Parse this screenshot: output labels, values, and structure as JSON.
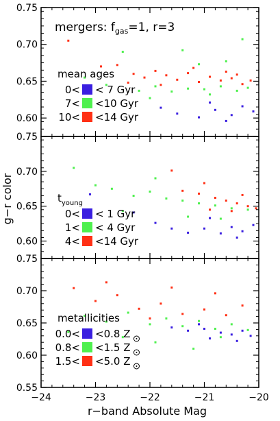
{
  "figure": {
    "ylabel": "g−r color",
    "xlabel": "r−band Absolute Mag",
    "xlim": [
      -24,
      -20
    ],
    "x_tick_values": [
      -24,
      -23,
      -22,
      -21,
      -20
    ],
    "x_tick_labels": [
      "−24",
      "−23",
      "−22",
      "−21",
      "−20"
    ]
  },
  "colors": {
    "blue": "#3a1fe0",
    "green": "#4ef04e",
    "red": "#ff3015"
  },
  "chart_data": [
    {
      "type": "scatter",
      "title": "mergers: f_gas=1, r=3",
      "title_parts": {
        "prefix": "mergers: f",
        "sub": "gas",
        "suffix": "=1, r=3"
      },
      "legend_title": "mean ages",
      "legend_title_sub": "",
      "legend": [
        {
          "lo": "0<",
          "hi": "< 7 Gyr",
          "color": "#3a1fe0"
        },
        {
          "lo": "7<",
          "hi": "<10 Gyr",
          "color": "#4ef04e"
        },
        {
          "lo": "10<",
          "hi": "<14 Gyr",
          "color": "#ff3015"
        }
      ],
      "xlim": [
        -24,
        -20
      ],
      "ylim": [
        0.575,
        0.75
      ],
      "y_ticks": [
        0.6,
        0.65,
        0.7,
        0.75
      ],
      "y_tick_labels": [
        "0.60",
        "0.65",
        "0.70",
        "0.75"
      ],
      "series": [
        {
          "color": "#ff3015",
          "points": [
            [
              -23.5,
              0.705
            ],
            [
              -22.9,
              0.67
            ],
            [
              -22.6,
              0.672
            ],
            [
              -22.3,
              0.66
            ],
            [
              -22.1,
              0.655
            ],
            [
              -21.9,
              0.664
            ],
            [
              -21.7,
              0.658
            ],
            [
              -21.5,
              0.652
            ],
            [
              -21.3,
              0.661
            ],
            [
              -21.1,
              0.649
            ],
            [
              -20.9,
              0.656
            ],
            [
              -20.7,
              0.651
            ],
            [
              -20.5,
              0.654
            ],
            [
              -20.3,
              0.646
            ],
            [
              -20.15,
              0.651
            ],
            [
              -21.8,
              0.645
            ],
            [
              -21.2,
              0.668
            ],
            [
              -20.6,
              0.663
            ],
            [
              -22.4,
              0.648
            ],
            [
              -20.4,
              0.659
            ]
          ]
        },
        {
          "color": "#4ef04e",
          "points": [
            [
              -23.2,
              0.655
            ],
            [
              -22.8,
              0.645
            ],
            [
              -22.5,
              0.69
            ],
            [
              -22.2,
              0.637
            ],
            [
              -21.9,
              0.643
            ],
            [
              -21.6,
              0.636
            ],
            [
              -21.3,
              0.64
            ],
            [
              -21.0,
              0.639
            ],
            [
              -20.7,
              0.643
            ],
            [
              -20.4,
              0.637
            ],
            [
              -20.2,
              0.641
            ],
            [
              -21.1,
              0.673
            ],
            [
              -20.6,
              0.677
            ],
            [
              -21.4,
              0.692
            ],
            [
              -20.3,
              0.707
            ],
            [
              -22.0,
              0.627
            ],
            [
              -20.9,
              0.632
            ]
          ]
        },
        {
          "color": "#3a1fe0",
          "points": [
            [
              -21.5,
              0.606
            ],
            [
              -21.1,
              0.601
            ],
            [
              -20.8,
              0.611
            ],
            [
              -20.5,
              0.604
            ],
            [
              -20.3,
              0.616
            ],
            [
              -20.1,
              0.609
            ],
            [
              -21.8,
              0.614
            ],
            [
              -20.6,
              0.596
            ],
            [
              -20.9,
              0.621
            ]
          ]
        }
      ]
    },
    {
      "type": "scatter",
      "title": "",
      "legend_title": "t",
      "legend_title_sub": "young",
      "legend": [
        {
          "lo": "0<",
          "hi": "< 1 Gyr",
          "color": "#3a1fe0"
        },
        {
          "lo": "1<",
          "hi": "< 4 Gyr",
          "color": "#4ef04e"
        },
        {
          "lo": "4<",
          "hi": "<14 Gyr",
          "color": "#ff3015"
        }
      ],
      "xlim": [
        -24,
        -20
      ],
      "ylim": [
        0.575,
        0.75
      ],
      "y_ticks": [
        0.6,
        0.65,
        0.7,
        0.75
      ],
      "y_tick_labels": [
        "0.60",
        "0.65",
        "0.70",
        "0.75"
      ],
      "series": [
        {
          "color": "#4ef04e",
          "points": [
            [
              -23.4,
              0.705
            ],
            [
              -23.0,
              0.68
            ],
            [
              -22.7,
              0.675
            ],
            [
              -22.3,
              0.665
            ],
            [
              -22.0,
              0.671
            ],
            [
              -21.7,
              0.661
            ],
            [
              -21.4,
              0.658
            ],
            [
              -21.1,
              0.654
            ],
            [
              -20.8,
              0.651
            ],
            [
              -20.5,
              0.647
            ],
            [
              -20.2,
              0.645
            ],
            [
              -22.5,
              0.643
            ],
            [
              -21.9,
              0.69
            ],
            [
              -21.3,
              0.635
            ],
            [
              -20.7,
              0.632
            ]
          ]
        },
        {
          "color": "#ff3015",
          "points": [
            [
              -21.4,
              0.672
            ],
            [
              -21.1,
              0.668
            ],
            [
              -20.8,
              0.662
            ],
            [
              -20.6,
              0.658
            ],
            [
              -20.4,
              0.654
            ],
            [
              -20.2,
              0.65
            ],
            [
              -20.05,
              0.647
            ],
            [
              -21.0,
              0.683
            ],
            [
              -20.5,
              0.643
            ],
            [
              -20.3,
              0.666
            ],
            [
              -21.6,
              0.701
            ],
            [
              -20.9,
              0.645
            ]
          ]
        },
        {
          "color": "#3a1fe0",
          "points": [
            [
              -23.1,
              0.667
            ],
            [
              -22.3,
              0.641
            ],
            [
              -21.9,
              0.626
            ],
            [
              -21.6,
              0.618
            ],
            [
              -21.3,
              0.612
            ],
            [
              -21.0,
              0.618
            ],
            [
              -20.7,
              0.611
            ],
            [
              -20.5,
              0.62
            ],
            [
              -20.3,
              0.614
            ],
            [
              -20.1,
              0.623
            ],
            [
              -20.9,
              0.633
            ],
            [
              -20.4,
              0.605
            ]
          ]
        }
      ]
    },
    {
      "type": "scatter",
      "title": "",
      "legend_title": "metallicities",
      "legend_title_sub": "",
      "legend": [
        {
          "lo": "0.0<",
          "hi": "<0.8 Z",
          "sun": true,
          "color": "#3a1fe0"
        },
        {
          "lo": "0.8<",
          "hi": "<1.5 Z",
          "sun": true,
          "color": "#4ef04e"
        },
        {
          "lo": "1.5<",
          "hi": "<5.0 Z",
          "sun": true,
          "color": "#ff3015"
        }
      ],
      "xlim": [
        -24,
        -20
      ],
      "ylim": [
        0.55,
        0.75
      ],
      "y_ticks": [
        0.55,
        0.6,
        0.65,
        0.7,
        0.75
      ],
      "y_tick_labels": [
        "0.55",
        "0.60",
        "0.65",
        "0.70",
        "0.75"
      ],
      "series": [
        {
          "color": "#ff3015",
          "points": [
            [
              -23.4,
              0.704
            ],
            [
              -23.0,
              0.684
            ],
            [
              -22.6,
              0.693
            ],
            [
              -22.2,
              0.672
            ],
            [
              -21.8,
              0.68
            ],
            [
              -21.4,
              0.664
            ],
            [
              -21.0,
              0.671
            ],
            [
              -20.6,
              0.662
            ],
            [
              -20.3,
              0.677
            ],
            [
              -22.8,
              0.713
            ],
            [
              -21.6,
              0.705
            ],
            [
              -20.8,
              0.696
            ],
            [
              -22.0,
              0.657
            ]
          ]
        },
        {
          "color": "#4ef04e",
          "points": [
            [
              -23.2,
              0.661
            ],
            [
              -22.8,
              0.652
            ],
            [
              -22.4,
              0.666
            ],
            [
              -22.0,
              0.648
            ],
            [
              -21.7,
              0.657
            ],
            [
              -21.4,
              0.645
            ],
            [
              -21.1,
              0.653
            ],
            [
              -20.8,
              0.641
            ],
            [
              -20.5,
              0.648
            ],
            [
              -20.2,
              0.639
            ],
            [
              -21.9,
              0.62
            ],
            [
              -22.5,
              0.628
            ],
            [
              -21.2,
              0.61
            ],
            [
              -20.7,
              0.628
            ],
            [
              -23.5,
              0.636
            ]
          ]
        },
        {
          "color": "#3a1fe0",
          "points": [
            [
              -21.6,
              0.643
            ],
            [
              -21.3,
              0.638
            ],
            [
              -21.0,
              0.641
            ],
            [
              -20.7,
              0.635
            ],
            [
              -20.5,
              0.632
            ],
            [
              -20.3,
              0.638
            ],
            [
              -20.15,
              0.63
            ],
            [
              -20.9,
              0.626
            ],
            [
              -20.4,
              0.622
            ],
            [
              -21.1,
              0.648
            ]
          ]
        }
      ]
    }
  ]
}
